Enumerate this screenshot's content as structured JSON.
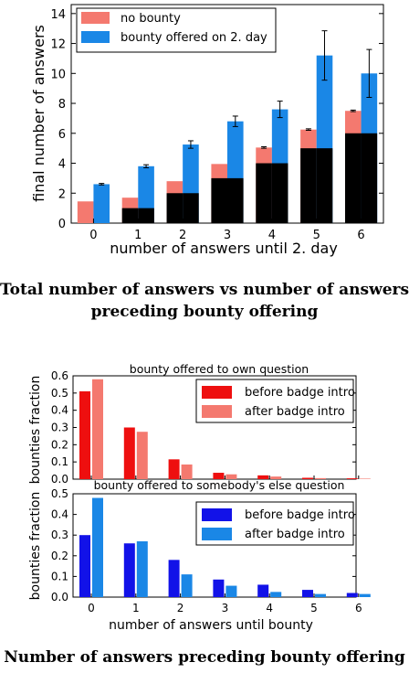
{
  "figures": {
    "top": {
      "caption_line1": "Total number of answers vs number of answers",
      "caption_line2": "preceding bounty offering"
    },
    "bottom": {
      "caption": "Number of answers preceding bounty offering"
    }
  },
  "colors": {
    "no_bounty": "#f4796f",
    "bounty_offered": "#1a87e6",
    "black": "#000000",
    "red_before": "#ee0f0f",
    "red_after": "#f4796f",
    "blue_before": "#1212e8",
    "blue_after": "#1a87e6"
  },
  "chart_data": [
    {
      "type": "bar",
      "title": "",
      "xlabel": "number of answers until 2. day",
      "ylabel": "final number of answers",
      "categories": [
        "0",
        "1",
        "2",
        "3",
        "4",
        "5",
        "6"
      ],
      "xlim": [
        -0.5,
        6.5
      ],
      "ylim": [
        0,
        14.6
      ],
      "yticks": [
        0,
        2,
        4,
        6,
        8,
        10,
        12,
        14
      ],
      "legend_position": "top-left",
      "series": [
        {
          "name": "no bounty",
          "values": [
            1.45,
            1.7,
            2.8,
            3.95,
            5.05,
            6.25,
            7.5
          ],
          "error": [
            0.0,
            0.0,
            0.0,
            0.0,
            0.05,
            0.05,
            0.05
          ]
        },
        {
          "name": "bounty offered on 2. day",
          "values": [
            2.6,
            3.8,
            5.25,
            6.8,
            7.6,
            11.2,
            10.0
          ],
          "error": [
            0.05,
            0.1,
            0.25,
            0.35,
            0.55,
            1.65,
            1.6
          ]
        }
      ],
      "baseline_black": [
        0,
        1,
        2,
        3,
        4,
        5,
        6
      ]
    },
    {
      "type": "bar",
      "title": "bounty offered to own question",
      "xlabel": "",
      "ylabel": "bounties fraction",
      "categories": [
        "0",
        "1",
        "2",
        "3",
        "4",
        "5",
        "6"
      ],
      "ylim": [
        0,
        0.6
      ],
      "yticks": [
        "0.0",
        "0.1",
        "0.2",
        "0.3",
        "0.4",
        "0.5",
        "0.6"
      ],
      "legend_position": "top-right",
      "series": [
        {
          "name": "before badge intro",
          "values": [
            0.51,
            0.3,
            0.115,
            0.037,
            0.022,
            0.008,
            0.005
          ]
        },
        {
          "name": "after badge intro",
          "values": [
            0.58,
            0.275,
            0.085,
            0.028,
            0.015,
            0.006,
            0.003
          ]
        }
      ]
    },
    {
      "type": "bar",
      "title": "bounty offered to somebody's else question",
      "xlabel": "number of answers until bounty",
      "ylabel": "bounties fraction",
      "categories": [
        "0",
        "1",
        "2",
        "3",
        "4",
        "5",
        "6"
      ],
      "ylim": [
        0,
        0.5
      ],
      "yticks": [
        "0.0",
        "0.1",
        "0.2",
        "0.3",
        "0.4",
        "0.5"
      ],
      "legend_position": "top-right",
      "series": [
        {
          "name": "before badge intro",
          "values": [
            0.3,
            0.26,
            0.18,
            0.085,
            0.06,
            0.035,
            0.02
          ]
        },
        {
          "name": "after badge intro",
          "values": [
            0.48,
            0.27,
            0.11,
            0.055,
            0.025,
            0.015,
            0.015
          ]
        }
      ]
    }
  ]
}
